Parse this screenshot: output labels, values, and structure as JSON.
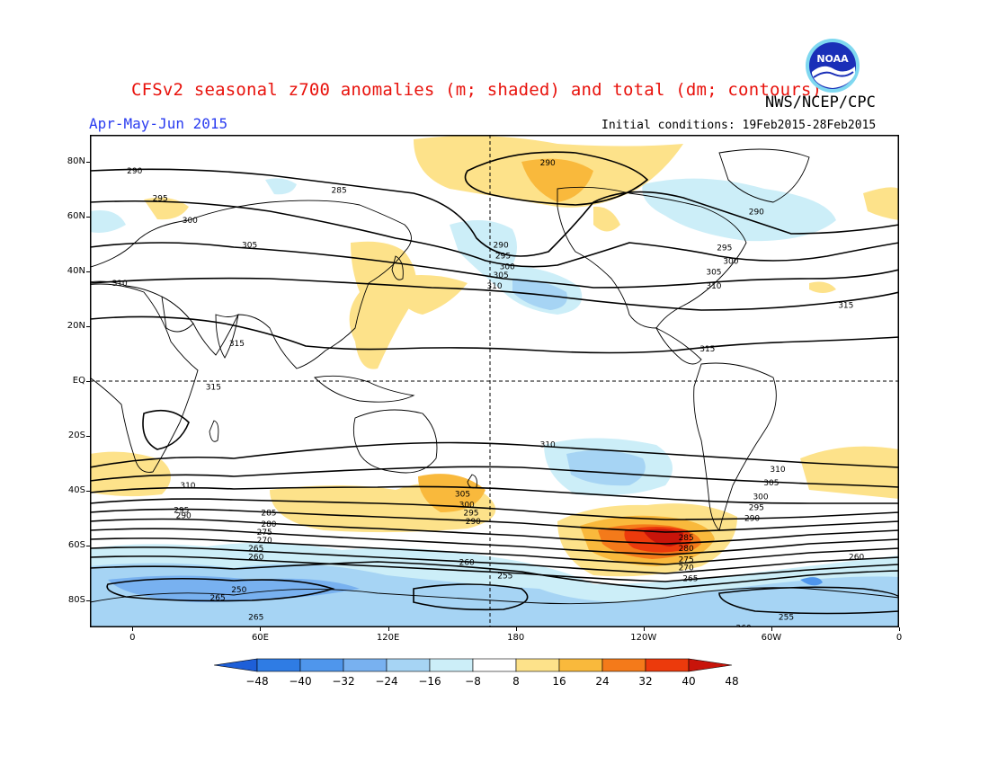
{
  "header": {
    "title": "CFSv2 seasonal z700 anomalies (m; shaded) and total (dm; contours)",
    "org": "NWS/NCEP/CPC",
    "season": "Apr-May-Jun 2015",
    "initial_conditions": "Initial conditions: 19Feb2015-28Feb2015",
    "logo_text": "NOAA"
  },
  "map": {
    "lat_ticks": [
      {
        "label": "80N",
        "lat": 80
      },
      {
        "label": "60N",
        "lat": 60
      },
      {
        "label": "40N",
        "lat": 40
      },
      {
        "label": "20N",
        "lat": 20
      },
      {
        "label": "EQ",
        "lat": 0
      },
      {
        "label": "20S",
        "lat": -20
      },
      {
        "label": "40S",
        "lat": -40
      },
      {
        "label": "60S",
        "lat": -60
      },
      {
        "label": "80S",
        "lat": -80
      }
    ],
    "lon_ticks": [
      {
        "label": "0",
        "lon": 0
      },
      {
        "label": "60E",
        "lon": 60
      },
      {
        "label": "120E",
        "lon": 120
      },
      {
        "label": "180",
        "lon": 180
      },
      {
        "label": "120W",
        "lon": 240
      },
      {
        "label": "60W",
        "lon": 300
      },
      {
        "label": "0",
        "lon": 360
      }
    ],
    "contour_labels": [
      {
        "text": "290",
        "lon": 1,
        "lat": 77
      },
      {
        "text": "285",
        "lon": 97,
        "lat": 70
      },
      {
        "text": "295",
        "lon": 13,
        "lat": 67
      },
      {
        "text": "300",
        "lon": 27,
        "lat": 59
      },
      {
        "text": "305",
        "lon": 55,
        "lat": 50
      },
      {
        "text": "310",
        "lon": -6,
        "lat": 36
      },
      {
        "text": "315",
        "lon": 49,
        "lat": 14
      },
      {
        "text": "315",
        "lon": 38,
        "lat": -2
      },
      {
        "text": "290",
        "lon": 195,
        "lat": 80
      },
      {
        "text": "290",
        "lon": 173,
        "lat": 50
      },
      {
        "text": "295",
        "lon": 174,
        "lat": 46
      },
      {
        "text": "300",
        "lon": 176,
        "lat": 42
      },
      {
        "text": "305",
        "lon": 173,
        "lat": 39
      },
      {
        "text": "310",
        "lon": 170,
        "lat": 35
      },
      {
        "text": "290",
        "lon": 293,
        "lat": 62
      },
      {
        "text": "295",
        "lon": 278,
        "lat": 49
      },
      {
        "text": "300",
        "lon": 281,
        "lat": 44
      },
      {
        "text": "305",
        "lon": 273,
        "lat": 40
      },
      {
        "text": "310",
        "lon": 273,
        "lat": 35
      },
      {
        "text": "315",
        "lon": 335,
        "lat": 28
      },
      {
        "text": "315",
        "lon": 270,
        "lat": 12
      },
      {
        "text": "310",
        "lon": 195,
        "lat": -23
      },
      {
        "text": "310",
        "lon": 303,
        "lat": -32
      },
      {
        "text": "305",
        "lon": 300,
        "lat": -37
      },
      {
        "text": "310",
        "lon": 26,
        "lat": -38
      },
      {
        "text": "305",
        "lon": 155,
        "lat": -41
      },
      {
        "text": "300",
        "lon": 157,
        "lat": -45
      },
      {
        "text": "295",
        "lon": 159,
        "lat": -48
      },
      {
        "text": "290",
        "lon": 160,
        "lat": -51
      },
      {
        "text": "295",
        "lon": 23,
        "lat": -47
      },
      {
        "text": "290",
        "lon": 24,
        "lat": -49
      },
      {
        "text": "285",
        "lon": 64,
        "lat": -48
      },
      {
        "text": "280",
        "lon": 64,
        "lat": -52
      },
      {
        "text": "275",
        "lon": 62,
        "lat": -55
      },
      {
        "text": "270",
        "lon": 62,
        "lat": -58
      },
      {
        "text": "265",
        "lon": 58,
        "lat": -61
      },
      {
        "text": "260",
        "lon": 58,
        "lat": -64
      },
      {
        "text": "300",
        "lon": 295,
        "lat": -42
      },
      {
        "text": "295",
        "lon": 293,
        "lat": -46
      },
      {
        "text": "290",
        "lon": 291,
        "lat": -50
      },
      {
        "text": "285",
        "lon": 260,
        "lat": -57
      },
      {
        "text": "280",
        "lon": 260,
        "lat": -61
      },
      {
        "text": "275",
        "lon": 260,
        "lat": -65
      },
      {
        "text": "270",
        "lon": 260,
        "lat": -68
      },
      {
        "text": "265",
        "lon": 262,
        "lat": -72
      },
      {
        "text": "260",
        "lon": 157,
        "lat": -66
      },
      {
        "text": "255",
        "lon": 175,
        "lat": -71
      },
      {
        "text": "260",
        "lon": 340,
        "lat": -64
      },
      {
        "text": "250",
        "lon": 50,
        "lat": -76
      },
      {
        "text": "265",
        "lon": 40,
        "lat": -79
      },
      {
        "text": "265",
        "lon": 58,
        "lat": -86
      },
      {
        "text": "255",
        "lon": 307,
        "lat": -86
      },
      {
        "text": "260",
        "lon": 287,
        "lat": -90
      }
    ]
  },
  "colorbar": {
    "labels": [
      "-48",
      "-40",
      "-32",
      "-24",
      "-16",
      "-8",
      "8",
      "16",
      "24",
      "32",
      "40",
      "48"
    ],
    "colors": [
      "#1e5fd8",
      "#2f7ce4",
      "#4f96ec",
      "#78b1f0",
      "#a6d4f4",
      "#cceef8",
      "#ffffff",
      "#fde28a",
      "#f9b93c",
      "#f47a1a",
      "#ec3a0c",
      "#c8140a"
    ]
  }
}
